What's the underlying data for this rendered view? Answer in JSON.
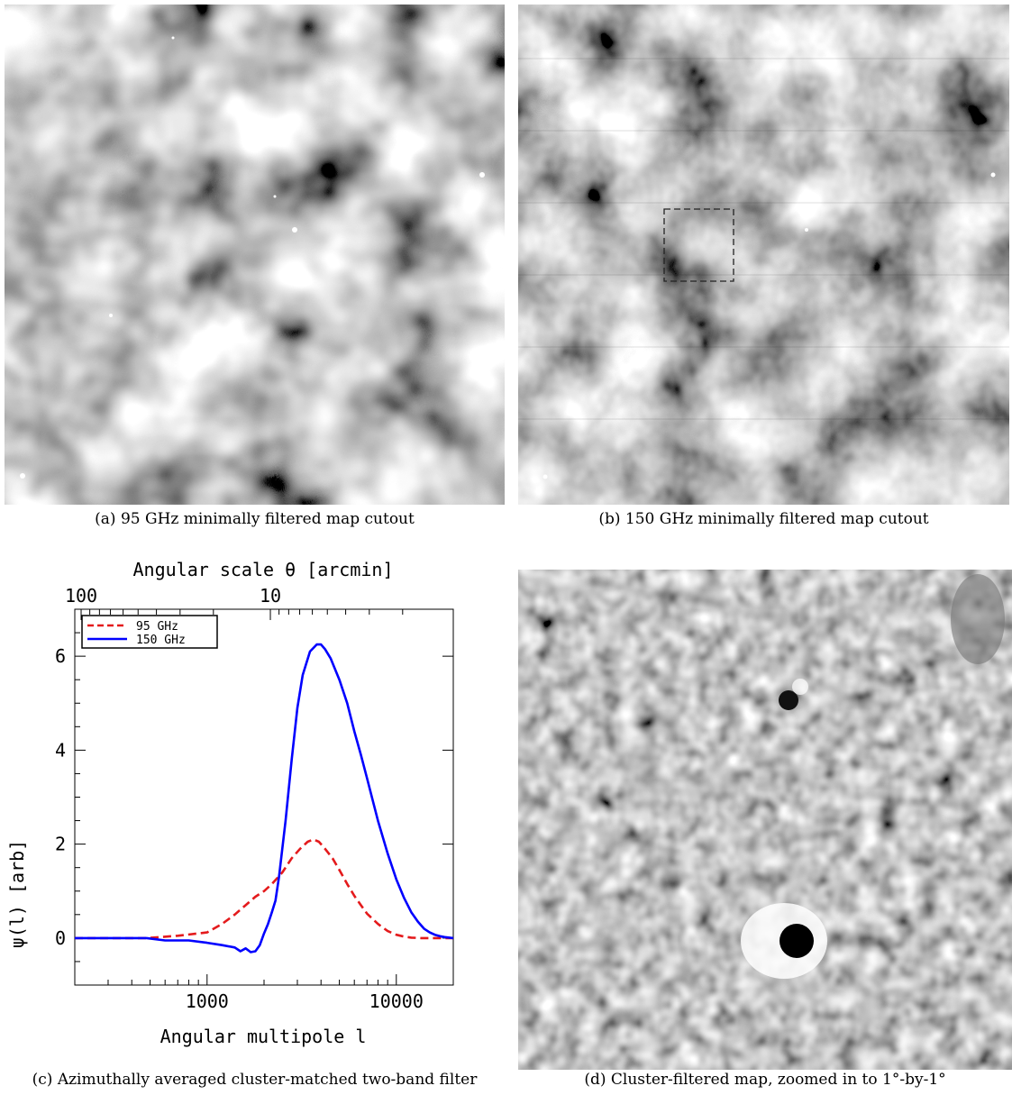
{
  "panels": {
    "a": {
      "caption": "(a) 95 GHz minimally filtered map cutout"
    },
    "b": {
      "caption": "(b) 150 GHz minimally filtered map cutout"
    },
    "c": {
      "caption": "(c) Azimuthally averaged cluster-matched two-band filter"
    },
    "d": {
      "caption": "(d) Cluster-filtered map, zoomed in to 1°-by-1°"
    }
  },
  "chart_data": {
    "type": "line",
    "title": "",
    "xlabel": "Angular multipole l",
    "x2label": "Angular scale θ [arcmin]",
    "ylabel": "ψ(l) [arb]",
    "xscale": "log",
    "xlim": [
      200,
      20000
    ],
    "ylim": [
      -1,
      7
    ],
    "xticks": [
      1000,
      10000
    ],
    "xticklabels": [
      "1000",
      "10000"
    ],
    "x2ticklabels": [
      "100",
      "10"
    ],
    "yticks": [
      0,
      2,
      4,
      6
    ],
    "yticklabels": [
      "0",
      "2",
      "4",
      "6"
    ],
    "legend_position": "top-left",
    "series": [
      {
        "name": "95 GHz",
        "color": "#e41a1c",
        "dash": "dashed",
        "x": [
          200,
          480,
          700,
          1000,
          1200,
          1400,
          1600,
          1800,
          2000,
          2200,
          2500,
          2800,
          3100,
          3400,
          3650,
          3900,
          4200,
          4600,
          5000,
          5500,
          6000,
          6500,
          7000,
          8000,
          9000,
          10000,
          11000,
          12000,
          13500,
          15000,
          17000,
          20000
        ],
        "y": [
          0,
          0,
          0.05,
          0.12,
          0.3,
          0.5,
          0.7,
          0.88,
          1.0,
          1.15,
          1.4,
          1.7,
          1.9,
          2.05,
          2.1,
          2.05,
          1.9,
          1.7,
          1.45,
          1.15,
          0.9,
          0.7,
          0.52,
          0.3,
          0.15,
          0.07,
          0.03,
          0.01,
          0,
          0,
          0,
          0
        ]
      },
      {
        "name": "150 GHz",
        "color": "#0000ff",
        "dash": "solid",
        "x": [
          200,
          400,
          480,
          600,
          800,
          1000,
          1200,
          1400,
          1500,
          1600,
          1700,
          1800,
          1900,
          2000,
          2100,
          2200,
          2300,
          2400,
          2600,
          2800,
          3000,
          3200,
          3500,
          3800,
          4000,
          4200,
          4500,
          5000,
          5500,
          6000,
          6500,
          7000,
          8000,
          9000,
          10000,
          11000,
          12000,
          13000,
          14000,
          15000,
          16000,
          17000,
          18000,
          20000
        ],
        "y": [
          0,
          0,
          0,
          -0.05,
          -0.05,
          -0.1,
          -0.15,
          -0.2,
          -0.28,
          -0.22,
          -0.3,
          -0.28,
          -0.15,
          0.1,
          0.3,
          0.55,
          0.8,
          1.3,
          2.5,
          3.8,
          4.9,
          5.6,
          6.1,
          6.25,
          6.25,
          6.15,
          5.95,
          5.5,
          5.0,
          4.4,
          3.9,
          3.4,
          2.5,
          1.8,
          1.25,
          0.85,
          0.55,
          0.35,
          0.2,
          0.12,
          0.07,
          0.04,
          0.02,
          0
        ]
      }
    ]
  }
}
